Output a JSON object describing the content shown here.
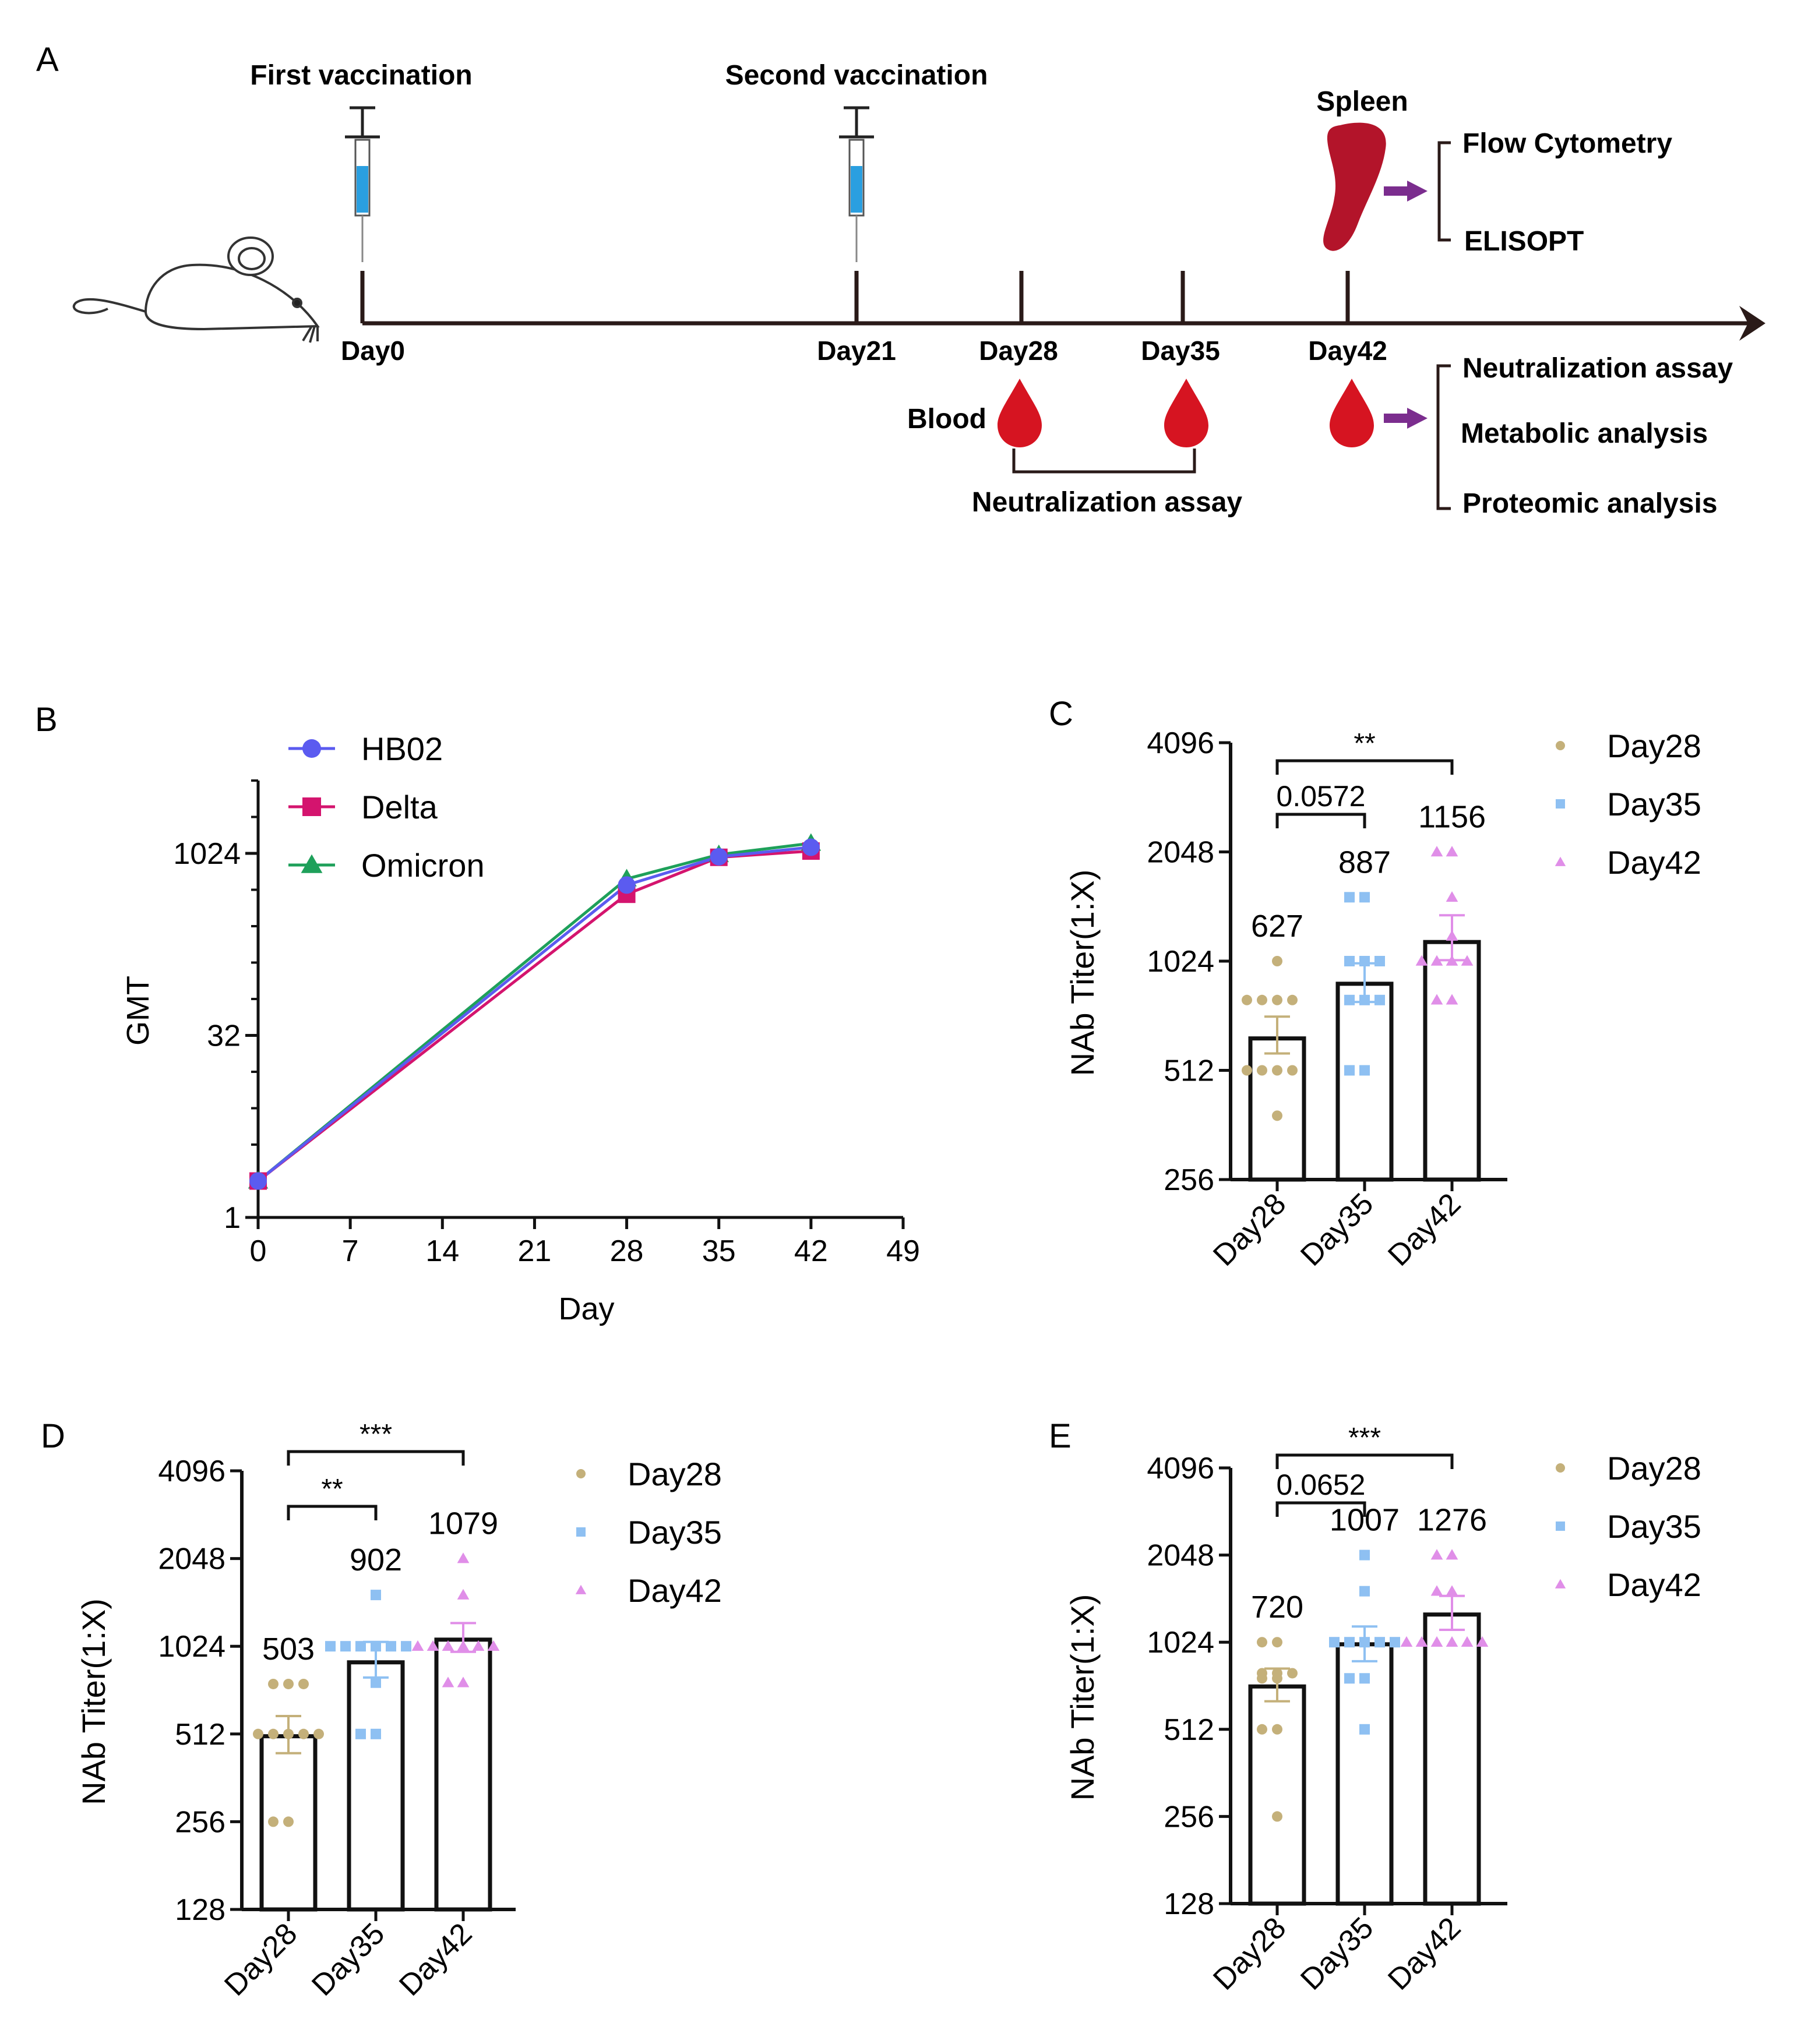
{
  "colors": {
    "hb02": "#5b5bf0",
    "delta": "#d4146e",
    "omicron": "#1ea05a",
    "day28": "#c4b07a",
    "day35": "#8ec0f2",
    "day42": "#e08ee8",
    "blood": "#d61421",
    "spleen": "#b3142a",
    "arrow": "#7b2d8e",
    "syringe_liquid": "#2a9fe0",
    "axis": "#2a1a18"
  },
  "panel_a": {
    "label": "A",
    "first_vaccination": "First vaccination",
    "second_vaccination": "Second vaccination",
    "spleen": "Spleen",
    "spleen_assays": [
      "Flow Cytometry",
      "ELISOPT"
    ],
    "days": [
      "Day0",
      "Day21",
      "Day28",
      "Day35",
      "Day42"
    ],
    "blood": "Blood",
    "blood_assay": "Neutralization assay",
    "blood_day42_assays": [
      "Neutralization assay",
      "Metabolic analysis",
      "Proteomic analysis"
    ],
    "icons": [
      "mouse-icon",
      "syringe-icon",
      "spleen-icon",
      "blood-drop-icon",
      "arrow-icon"
    ]
  },
  "chart_data": [
    {
      "panel": "B",
      "type": "line",
      "xlabel": "Day",
      "ylabel": "GMT",
      "y_scale": "log2",
      "x_ticks": [
        0,
        7,
        14,
        21,
        28,
        35,
        42,
        49
      ],
      "xlim": [
        0,
        49
      ],
      "y_ticks": [
        1,
        32,
        1024
      ],
      "ylim": [
        1,
        4096
      ],
      "x": [
        0,
        28,
        35,
        42
      ],
      "series": [
        {
          "name": "HB02",
          "marker": "circle",
          "values": [
            2,
            560,
            960,
            1150
          ]
        },
        {
          "name": "Delta",
          "marker": "square",
          "values": [
            2,
            470,
            950,
            1070
          ]
        },
        {
          "name": "Omicron",
          "marker": "triangle",
          "values": [
            2,
            630,
            1000,
            1240
          ]
        }
      ],
      "legend": "top-left"
    },
    {
      "panel": "C",
      "type": "bar",
      "ylabel": "NAb Titer(1:X)",
      "y_scale": "log2",
      "y_ticks": [
        256,
        512,
        1024,
        2048,
        4096
      ],
      "ylim": [
        256,
        4096
      ],
      "categories": [
        "Day28",
        "Day35",
        "Day42"
      ],
      "values": [
        627,
        887,
        1156
      ],
      "value_labels": [
        "627",
        "887",
        "1156"
      ],
      "sem_upper": [
        720,
        1010,
        1370
      ],
      "sem_lower": [
        570,
        790,
        1030
      ],
      "points": [
        [
          1024,
          800,
          800,
          800,
          800,
          512,
          512,
          512,
          512,
          384
        ],
        [
          1536,
          1536,
          1024,
          1024,
          800,
          800,
          800,
          512,
          512,
          1024
        ],
        [
          2048,
          2048,
          1536,
          1024,
          1024,
          1024,
          1024,
          800,
          800,
          1200
        ]
      ],
      "comparisons": [
        {
          "from": 0,
          "to": 2,
          "label": "**"
        },
        {
          "from": 0,
          "to": 1,
          "label": "0.0572"
        }
      ],
      "legend": [
        "Day28",
        "Day35",
        "Day42"
      ]
    },
    {
      "panel": "D",
      "type": "bar",
      "ylabel": "NAb Titer(1:X)",
      "y_scale": "log2",
      "y_ticks": [
        128,
        256,
        512,
        1024,
        2048,
        4096
      ],
      "ylim": [
        128,
        4096
      ],
      "categories": [
        "Day28",
        "Day35",
        "Day42"
      ],
      "values": [
        503,
        902,
        1079
      ],
      "value_labels": [
        "503",
        "902",
        "1079"
      ],
      "sem_upper": [
        590,
        1060,
        1230
      ],
      "sem_lower": [
        440,
        800,
        980
      ],
      "points": [
        [
          760,
          760,
          760,
          512,
          512,
          512,
          512,
          256,
          256,
          512
        ],
        [
          1536,
          1024,
          1024,
          1024,
          1024,
          1024,
          768,
          512,
          512,
          1024
        ],
        [
          2048,
          1536,
          1024,
          1024,
          1024,
          1024,
          1024,
          768,
          768,
          1024
        ]
      ],
      "comparisons": [
        {
          "from": 0,
          "to": 2,
          "label": "***"
        },
        {
          "from": 0,
          "to": 1,
          "label": "**"
        }
      ],
      "legend": [
        "Day28",
        "Day35",
        "Day42"
      ]
    },
    {
      "panel": "E",
      "type": "bar",
      "ylabel": "NAb Titer(1:X)",
      "y_scale": "log2",
      "y_ticks": [
        128,
        256,
        512,
        1024,
        2048,
        4096
      ],
      "ylim": [
        128,
        4096
      ],
      "categories": [
        "Day28",
        "Day35",
        "Day42"
      ],
      "values": [
        720,
        1007,
        1276
      ],
      "value_labels": [
        "720",
        "1007",
        "1276"
      ],
      "sem_upper": [
        830,
        1160,
        1480
      ],
      "sem_lower": [
        640,
        880,
        1130
      ],
      "points": [
        [
          1024,
          1024,
          800,
          800,
          800,
          768,
          768,
          512,
          512,
          256
        ],
        [
          2048,
          1536,
          1024,
          1024,
          1024,
          1024,
          1024,
          768,
          768,
          512
        ],
        [
          2048,
          2048,
          1536,
          1536,
          1024,
          1024,
          1024,
          1024,
          1024,
          1024
        ]
      ],
      "comparisons": [
        {
          "from": 0,
          "to": 2,
          "label": "***"
        },
        {
          "from": 0,
          "to": 1,
          "label": "0.0652"
        }
      ],
      "legend": [
        "Day28",
        "Day35",
        "Day42"
      ]
    }
  ]
}
